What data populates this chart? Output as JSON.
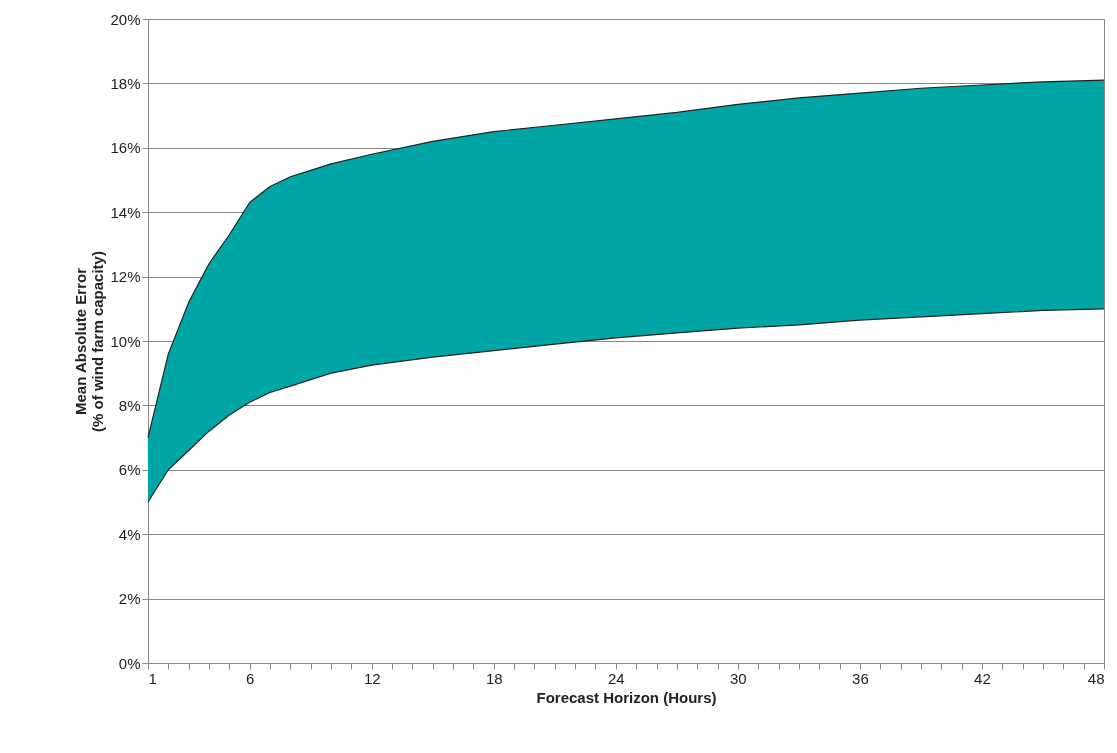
{
  "chart_data": {
    "type": "area",
    "xlabel": "Forecast Horizon (Hours)",
    "ylabel": "Mean Absolute Error\n(% of wind farm capacity)",
    "x": [
      1,
      2,
      3,
      4,
      5,
      6,
      7,
      8,
      9,
      10,
      12,
      15,
      18,
      21,
      24,
      27,
      30,
      33,
      36,
      39,
      42,
      45,
      48
    ],
    "series": [
      {
        "color": "#00a6a6",
        "values": [
          7.0,
          9.6,
          11.2,
          12.4,
          13.3,
          14.3,
          14.8,
          15.1,
          15.3,
          15.5,
          15.8,
          16.2,
          16.5,
          16.7,
          16.9,
          17.1,
          17.35,
          17.55,
          17.7,
          17.85,
          17.95,
          18.05,
          18.1
        ]
      },
      {
        "type": "line",
        "color": "#222222",
        "values": [
          5.0,
          6.0,
          6.6,
          7.2,
          7.7,
          8.1,
          8.4,
          8.6,
          8.8,
          9.0,
          9.25,
          9.5,
          9.7,
          9.9,
          10.1,
          10.25,
          10.4,
          10.5,
          10.65,
          10.75,
          10.85,
          10.95,
          11.0
        ]
      }
    ],
    "xlim": [
      1,
      48
    ],
    "ylim": [
      0,
      20
    ],
    "xticks": [
      1,
      {
        "value": 2,
        "label": null
      },
      {
        "value": 3,
        "label": null
      },
      {
        "value": 4,
        "label": null
      },
      {
        "value": 5,
        "label": null
      },
      6,
      {
        "value": 7,
        "label": null
      },
      {
        "value": 8,
        "label": null
      },
      {
        "value": 9,
        "label": null
      },
      {
        "value": 10,
        "label": null
      },
      {
        "value": 11,
        "label": null
      },
      12,
      {
        "value": 13,
        "label": null
      },
      {
        "value": 14,
        "label": null
      },
      {
        "value": 15,
        "label": null
      },
      {
        "value": 16,
        "label": null
      },
      {
        "value": 17,
        "label": null
      },
      18,
      {
        "value": 19,
        "label": null
      },
      {
        "value": 20,
        "label": null
      },
      {
        "value": 21,
        "label": null
      },
      {
        "value": 22,
        "label": null
      },
      {
        "value": 23,
        "label": null
      },
      24,
      {
        "value": 25,
        "label": null
      },
      {
        "value": 26,
        "label": null
      },
      {
        "value": 27,
        "label": null
      },
      {
        "value": 28,
        "label": null
      },
      {
        "value": 29,
        "label": null
      },
      30,
      {
        "value": 31,
        "label": null
      },
      {
        "value": 32,
        "label": null
      },
      {
        "value": 33,
        "label": null
      },
      {
        "value": 34,
        "label": null
      },
      {
        "value": 35,
        "label": null
      },
      36,
      {
        "value": 37,
        "label": null
      },
      {
        "value": 38,
        "label": null
      },
      {
        "value": 39,
        "label": null
      },
      {
        "value": 40,
        "label": null
      },
      {
        "value": 41,
        "label": null
      },
      42,
      {
        "value": 43,
        "label": null
      },
      {
        "value": 44,
        "label": null
      },
      {
        "value": 45,
        "label": null
      },
      {
        "value": 46,
        "label": null
      },
      {
        "value": 47,
        "label": null
      },
      48
    ],
    "yticks": [
      {
        "value": 0,
        "label": "0%"
      },
      {
        "value": 2,
        "label": "2%"
      },
      {
        "value": 4,
        "label": "4%"
      },
      {
        "value": 6,
        "label": "6%"
      },
      {
        "value": 8,
        "label": "8%"
      },
      {
        "value": 10,
        "label": "10%"
      },
      {
        "value": 12,
        "label": "12%"
      },
      {
        "value": 14,
        "label": "14%"
      },
      {
        "value": 16,
        "label": "16%"
      },
      {
        "value": 18,
        "label": "18%"
      },
      {
        "value": 20,
        "label": "20%"
      }
    ],
    "grid": "y"
  }
}
